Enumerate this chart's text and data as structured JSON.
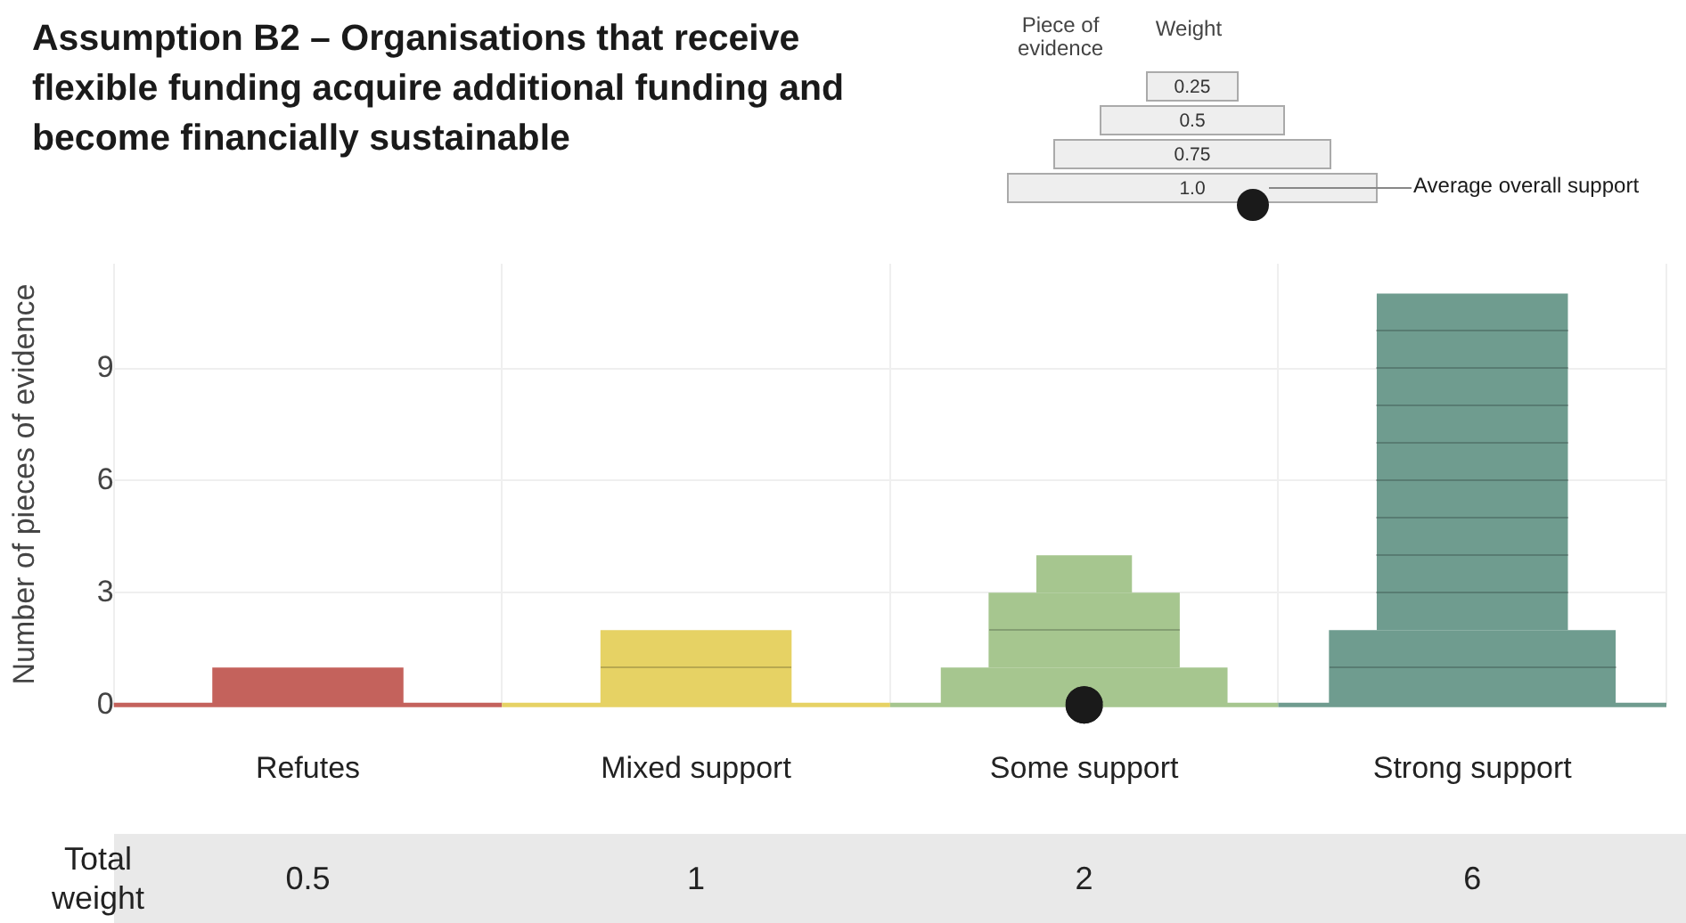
{
  "chart_data": {
    "type": "bar",
    "title": "Assumption B2 – Organisations that receive flexible funding acquire additional funding and become financially sustainable",
    "ylabel": "Number of pieces of evidence",
    "categories": [
      "Refutes",
      "Mixed support",
      "Some support",
      "Strong support"
    ],
    "stacked": true,
    "series": [
      {
        "colors": [
          "#c4625c",
          "#e6d264",
          "#a6c68f",
          "#6f9c8f"
        ],
        "values": [
          0,
          0,
          0,
          0
        ]
      },
      {
        "colors": [
          "#c4625c",
          "#e6d264",
          "#a6c68f",
          "#6f9c8f"
        ],
        "values": [
          0,
          0,
          1,
          2
        ]
      },
      {
        "colors": [
          "#c4625c",
          "#e6d264",
          "#a6c68f",
          "#6f9c8f"
        ],
        "values": [
          1,
          2,
          2,
          9
        ]
      },
      {
        "colors": [
          "#c4625c",
          "#e6d264",
          "#a6c68f",
          "#6f9c8f"
        ],
        "values": [
          0,
          0,
          1,
          0
        ]
      },
      {
        "name": "Average overall support",
        "type": "scatter",
        "color": "#1a1a1a",
        "values": [
          null,
          null,
          0,
          null
        ],
        "marker": "circle"
      }
    ],
    "ylim": [
      0,
      11.8
    ],
    "yticks": [
      0,
      3,
      6,
      9
    ],
    "grid": true,
    "annotations": [
      "Piece of evidence",
      "Weight",
      "Total weight",
      "0.5",
      "1",
      "2",
      "6",
      "1.0",
      "0.75",
      "0.5",
      "0.25"
    ]
  }
}
